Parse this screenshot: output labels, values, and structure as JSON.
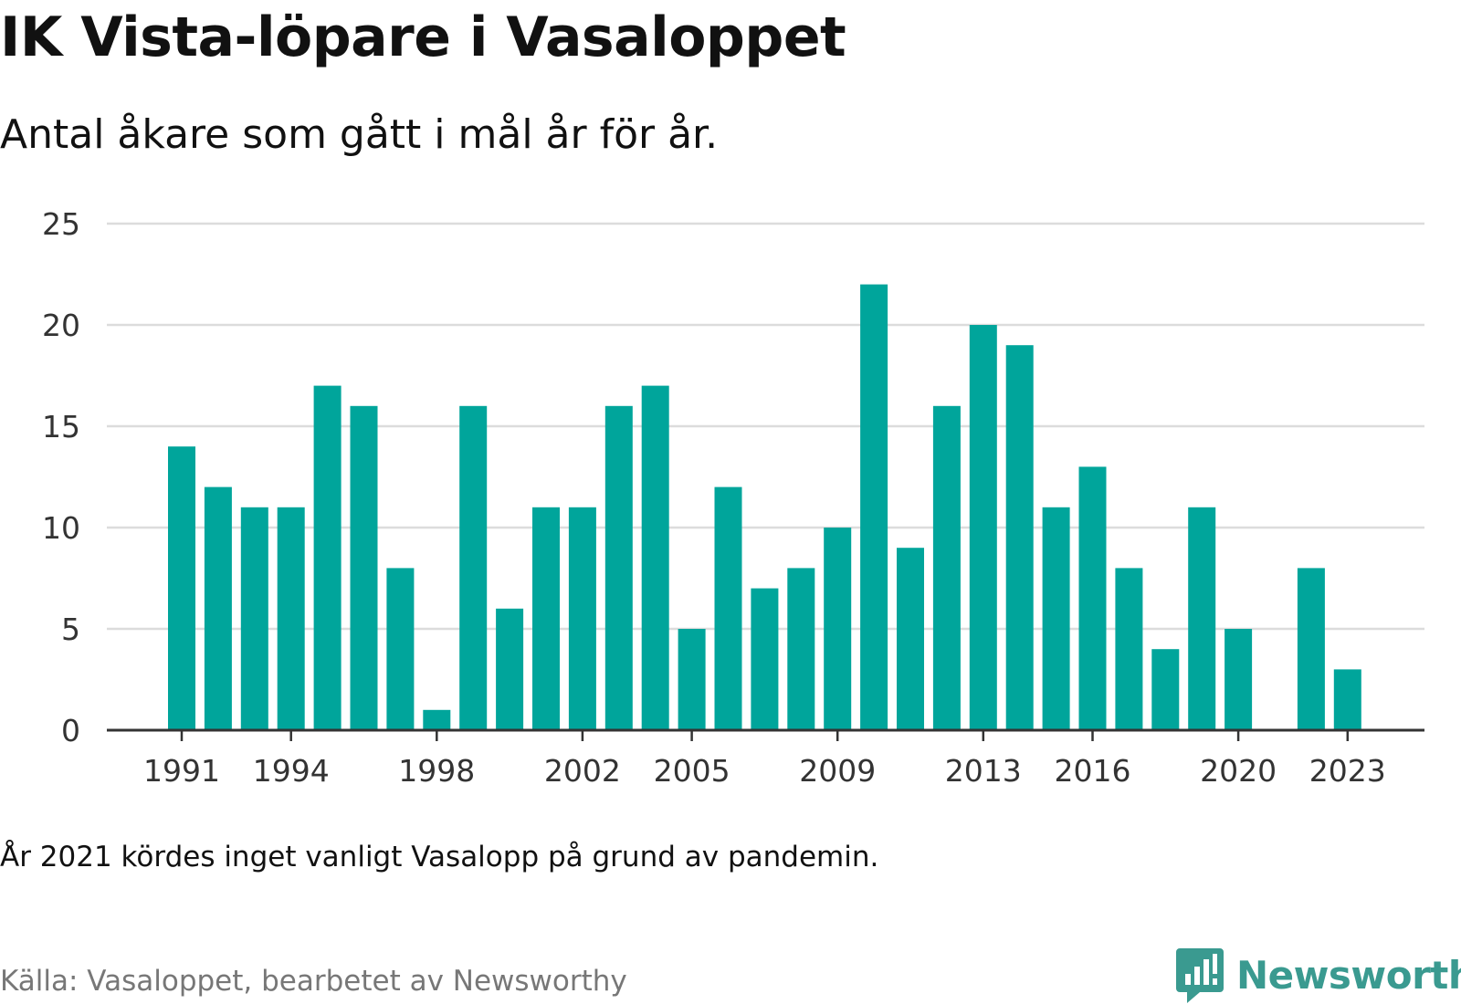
{
  "title": "IK Vista-löpare i Vasaloppet",
  "subtitle": "Antal åkare som gått i mål år för år.",
  "note": "År 2021 kördes inget vanligt Vasalopp på grund av pandemin.",
  "source": "Källa: Vasaloppet, bearbetet av Newsworthy",
  "brand": {
    "name": "Newsworthy",
    "icon": "newsworthy-logo-icon",
    "color": "#3a9a90"
  },
  "colors": {
    "bar": "#00a59b",
    "grid": "#dcdcdc",
    "axis": "#333333"
  },
  "chart_data": {
    "type": "bar",
    "title": "IK Vista-löpare i Vasaloppet",
    "subtitle": "Antal åkare som gått i mål år för år.",
    "xlabel": "",
    "ylabel": "",
    "x": [
      1991,
      1992,
      1993,
      1994,
      1995,
      1996,
      1997,
      1998,
      1999,
      2000,
      2001,
      2002,
      2003,
      2004,
      2005,
      2006,
      2007,
      2008,
      2009,
      2010,
      2011,
      2012,
      2013,
      2014,
      2015,
      2016,
      2017,
      2018,
      2019,
      2020,
      2022,
      2023
    ],
    "values": [
      14,
      12,
      11,
      11,
      17,
      16,
      8,
      1,
      16,
      6,
      11,
      11,
      16,
      17,
      5,
      12,
      7,
      8,
      10,
      22,
      9,
      16,
      20,
      19,
      11,
      13,
      8,
      4,
      11,
      5,
      8,
      3
    ],
    "x_tick_labels": [
      "1991",
      "1994",
      "1998",
      "2002",
      "2005",
      "2009",
      "2013",
      "2016",
      "2020",
      "2023"
    ],
    "xlim": [
      1991,
      2023
    ],
    "ylim": [
      0,
      25
    ],
    "y_ticks": [
      0,
      5,
      10,
      15,
      20,
      25
    ],
    "grid": true,
    "legend": "none"
  }
}
